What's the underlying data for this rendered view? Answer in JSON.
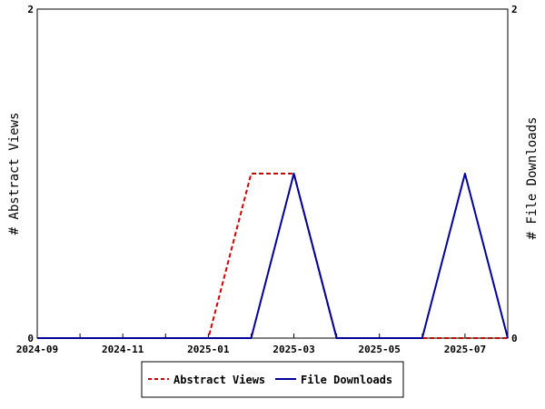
{
  "chart_data": {
    "type": "line",
    "x": [
      "2024-09",
      "2024-10",
      "2024-11",
      "2024-12",
      "2025-01",
      "2025-02",
      "2025-03",
      "2025-04",
      "2025-05",
      "2025-06",
      "2025-07",
      "2025-08"
    ],
    "x_tick_labels": [
      "2024-09",
      "2024-11",
      "2025-01",
      "2025-03",
      "2025-05",
      "2025-07"
    ],
    "series": [
      {
        "name": "Abstract Views",
        "axis": "left",
        "color": "#cc0000",
        "dash": "dashed",
        "values": [
          0,
          0,
          0,
          0,
          0,
          1,
          1,
          0,
          0,
          0,
          0,
          0
        ]
      },
      {
        "name": "File Downloads",
        "axis": "right",
        "color": "#000099",
        "dash": "solid",
        "values": [
          0,
          0,
          0,
          0,
          0,
          0,
          1,
          0,
          0,
          0,
          1,
          0
        ]
      }
    ],
    "ylabel_left": "# Abstract Views",
    "ylabel_right": "# File Downloads",
    "ylim_left": [
      0,
      2
    ],
    "ylim_right": [
      0,
      2
    ],
    "y_tick_labels_left": [
      "0",
      "2"
    ],
    "y_tick_labels_right": [
      "0",
      "2"
    ],
    "grid": false,
    "legend_position": "bottom"
  }
}
